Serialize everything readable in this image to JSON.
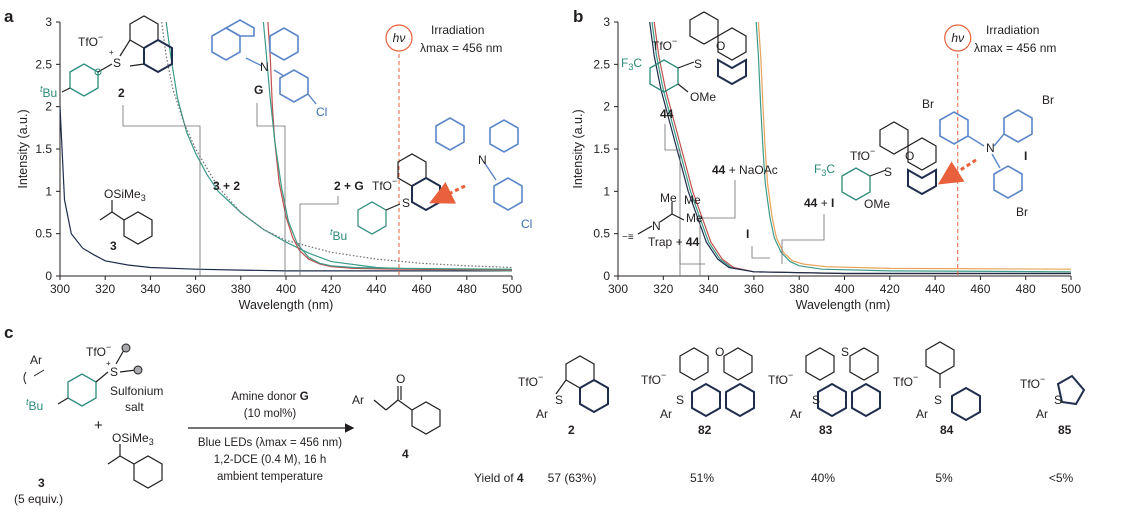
{
  "figure": {
    "panel_a_letter": "a",
    "panel_b_letter": "b",
    "panel_c_letter": "c"
  },
  "colors": {
    "navy": "#1f2d4d",
    "teal": "#3c9b8a",
    "red": "#c0504d",
    "grey_dotted": "#6d6e71",
    "orange": "#e8a25a",
    "hv": "#e8613c",
    "blue_mol": "#5a86c9"
  },
  "chart_data": [
    {
      "type": "line",
      "panel": "a",
      "xlabel": "Wavelength (nm)",
      "ylabel": "Intensity (a.u.)",
      "xlim": [
        300,
        500
      ],
      "ylim": [
        0,
        3
      ],
      "xticks": [
        "300",
        "320",
        "340",
        "360",
        "380",
        "400",
        "420",
        "440",
        "460",
        "480",
        "500"
      ],
      "yticks": [
        "0",
        "0.5",
        "1",
        "1.5",
        "2",
        "2.5",
        "3"
      ],
      "irradiation_nm": 450,
      "irradiation_label": "Irradiation",
      "lambda_max_label": "λmax = 456 nm",
      "hv_label": "hν",
      "series": [
        {
          "name": "3",
          "color": "#1f2d4d",
          "style": "solid",
          "x": [
            300,
            302,
            305,
            310,
            315,
            320,
            330,
            340,
            360,
            380,
            400,
            440,
            500
          ],
          "y": [
            2.0,
            0.9,
            0.5,
            0.33,
            0.25,
            0.18,
            0.13,
            0.1,
            0.08,
            0.07,
            0.06,
            0.06,
            0.06
          ]
        },
        {
          "name": "2",
          "color": "#3c9b8a",
          "style": "solid",
          "x": [
            347,
            349,
            352,
            356,
            360,
            365,
            370,
            380,
            390,
            400,
            410,
            420,
            440,
            460,
            500
          ],
          "y": [
            3.0,
            2.6,
            2.1,
            1.7,
            1.45,
            1.2,
            1.0,
            0.75,
            0.55,
            0.4,
            0.27,
            0.17,
            0.1,
            0.08,
            0.06
          ]
        },
        {
          "name": "3 + 2",
          "color": "#6d6e71",
          "style": "dotted",
          "x": [
            345,
            347,
            350,
            355,
            360,
            370,
            380,
            390,
            400,
            420,
            440,
            460,
            480,
            500
          ],
          "y": [
            3.0,
            2.6,
            2.2,
            1.8,
            1.5,
            1.05,
            0.75,
            0.55,
            0.42,
            0.28,
            0.2,
            0.15,
            0.12,
            0.1
          ]
        },
        {
          "name": "G",
          "color": "#c0504d",
          "style": "solid",
          "x": [
            392,
            393,
            394,
            395,
            397,
            400,
            403,
            406,
            410,
            415,
            420,
            430,
            450,
            500
          ],
          "y": [
            3.0,
            2.6,
            2.0,
            1.6,
            1.1,
            0.7,
            0.45,
            0.3,
            0.2,
            0.14,
            0.11,
            0.09,
            0.08,
            0.07
          ]
        },
        {
          "name": "2 + G",
          "color": "#3c9b8a",
          "style": "solid",
          "x": [
            390,
            391,
            393,
            395,
            398,
            401,
            405,
            410,
            415,
            420,
            430,
            450,
            500
          ],
          "y": [
            3.0,
            2.7,
            2.1,
            1.6,
            1.05,
            0.65,
            0.38,
            0.22,
            0.15,
            0.12,
            0.1,
            0.09,
            0.08
          ]
        }
      ],
      "annotations": [
        "3 + 2",
        "2 + G"
      ]
    },
    {
      "type": "line",
      "panel": "b",
      "xlabel": "Wavelength (nm)",
      "ylabel": "Intensity (a.u.)",
      "xlim": [
        300,
        500
      ],
      "ylim": [
        0,
        3
      ],
      "xticks": [
        "300",
        "320",
        "340",
        "360",
        "380",
        "400",
        "420",
        "440",
        "460",
        "480",
        "500"
      ],
      "yticks": [
        "0",
        "0.5",
        "1",
        "1.5",
        "2",
        "2.5",
        "3"
      ],
      "irradiation_nm": 450,
      "irradiation_label": "Irradiation",
      "lambda_max_label": "λmax = 456 nm",
      "hv_label": "hν",
      "series": [
        {
          "name": "44",
          "color": "#3c9b8a",
          "style": "solid",
          "x": [
            315,
            317,
            320,
            323,
            326,
            329,
            332,
            336,
            340,
            345,
            350,
            360,
            400,
            500
          ],
          "y": [
            3.0,
            2.6,
            2.2,
            1.9,
            1.6,
            1.3,
            1.0,
            0.7,
            0.4,
            0.2,
            0.1,
            0.05,
            0.03,
            0.03
          ]
        },
        {
          "name": "44 + NaOAc",
          "color": "#c0504d",
          "style": "solid",
          "x": [
            316,
            318,
            321,
            324,
            327,
            330,
            333,
            337,
            341,
            346,
            351,
            360,
            400,
            500
          ],
          "y": [
            3.0,
            2.6,
            2.2,
            1.9,
            1.6,
            1.3,
            1.0,
            0.7,
            0.4,
            0.2,
            0.1,
            0.05,
            0.03,
            0.03
          ]
        },
        {
          "name": "Trap + 44",
          "color": "#1f2d4d",
          "style": "solid",
          "x": [
            314,
            316,
            319,
            322,
            325,
            328,
            331,
            335,
            339,
            344,
            349,
            360,
            400,
            500
          ],
          "y": [
            3.0,
            2.6,
            2.2,
            1.9,
            1.6,
            1.3,
            1.0,
            0.7,
            0.4,
            0.2,
            0.1,
            0.05,
            0.03,
            0.03
          ]
        },
        {
          "name": "I",
          "color": "#3c9b8a",
          "style": "solid",
          "x": [
            361,
            362,
            363,
            364,
            365,
            367,
            369,
            372,
            376,
            380,
            390,
            420,
            500
          ],
          "y": [
            3.0,
            2.6,
            2.0,
            1.5,
            1.1,
            0.7,
            0.45,
            0.28,
            0.17,
            0.12,
            0.08,
            0.06,
            0.05
          ]
        },
        {
          "name": "44 + I",
          "color": "#e8a25a",
          "style": "solid",
          "x": [
            362,
            363,
            364,
            365,
            366,
            368,
            370,
            373,
            377,
            382,
            392,
            420,
            500
          ],
          "y": [
            3.0,
            2.6,
            2.0,
            1.5,
            1.1,
            0.7,
            0.45,
            0.28,
            0.18,
            0.14,
            0.11,
            0.09,
            0.08
          ]
        }
      ],
      "annotations": [
        "44 + NaOAc",
        "44 + I",
        "I",
        "Trap + 44"
      ]
    }
  ],
  "panel_a": {
    "tfo": "TfO",
    "minus": "−",
    "plus": "+",
    "s": "S",
    "tbu_t": "t",
    "tbu": "Bu",
    "label_2": "2",
    "label_g": "G",
    "label_n": "N",
    "label_cl": "Cl",
    "osime3": "OSiMe",
    "sub3": "3",
    "label_3": "3",
    "ann_3plus2": "3 + 2",
    "ann_2plusG_a": "2 + ",
    "ann_2plusG_b": "G"
  },
  "panel_b": {
    "tfo": "TfO",
    "minus": "−",
    "plus": "+",
    "s": "S",
    "o": "O",
    "f3c_a": "F",
    "f3c_sub": "3",
    "f3c_b": "C",
    "ome": "OMe",
    "label_44": "44",
    "ann_44_naoac_a": "44",
    "ann_44_naoac_b": " + NaOAc",
    "ann_44_i_a": "44",
    "ann_44_i_b": " + ",
    "ann_44_i_c": "I",
    "ann_i": "I",
    "ann_trap_a": "Trap + ",
    "ann_trap_b": "44",
    "me1": "Me",
    "me2": "Me",
    "me3": "Me",
    "n": "N",
    "br1": "Br",
    "br2": "Br",
    "br3": "Br",
    "label_i": "I",
    "label_n_mol": "N"
  },
  "panel_c": {
    "ar": "Ar",
    "tfo": "TfO",
    "minus": "−",
    "plus": "+",
    "s": "S",
    "tbu_t": "t",
    "tbu": "Bu",
    "sulfonium": "Sulfonium",
    "salt": "salt",
    "plus_sign": "+",
    "osime3": "OSiMe",
    "sub3": "3",
    "label_3": "3",
    "equiv": "(5 equiv.)",
    "amine_donor_a": "Amine donor ",
    "amine_donor_b": "G",
    "mol_pct": "(10 mol%)",
    "blue_leds": "Blue LEDs (λmax = 456 nm)",
    "solvent": "1,2-DCE (0.4 M), 16 h",
    "temperature": "ambient temperature",
    "product_o": "O",
    "product_ar": "Ar",
    "product_label": "4",
    "yield_label_a": "Yield of ",
    "yield_label_b": "4",
    "catalysts": [
      {
        "label": "2",
        "yield": "57 (63%)"
      },
      {
        "label": "82",
        "yield": "51%"
      },
      {
        "label": "83",
        "yield": "40%"
      },
      {
        "label": "84",
        "yield": "5%"
      },
      {
        "label": "85",
        "yield": "<5%"
      }
    ],
    "o_atom": "O",
    "s_atom": "S"
  }
}
